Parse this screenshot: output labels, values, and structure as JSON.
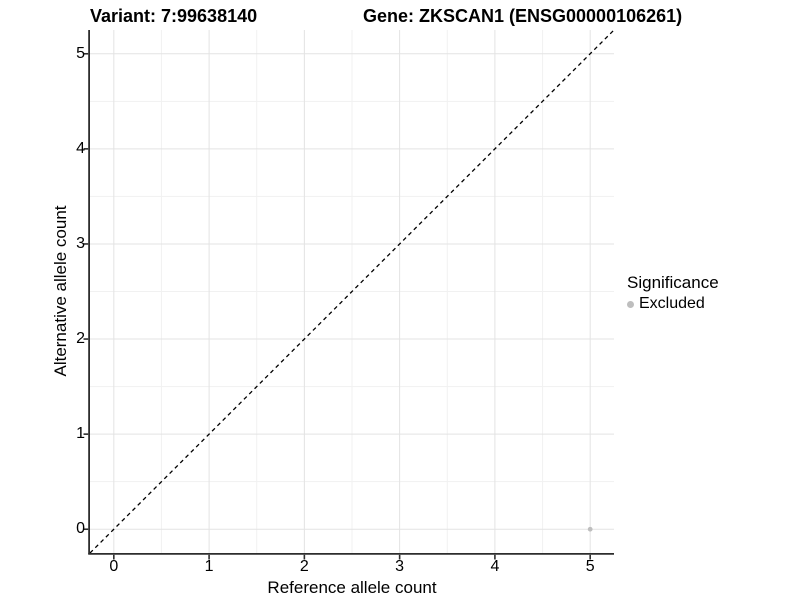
{
  "titles": {
    "variant": "Variant: 7:99638140",
    "gene": "Gene: ZKSCAN1 (ENSG00000106261)"
  },
  "chart_data": {
    "type": "scatter",
    "xlabel": "Reference allele count",
    "ylabel": "Alternative allele count",
    "xlim": [
      -0.25,
      5.25
    ],
    "ylim": [
      -0.25,
      5.25
    ],
    "x_ticks": [
      0,
      1,
      2,
      3,
      4,
      5
    ],
    "y_ticks": [
      0,
      1,
      2,
      3,
      4,
      5
    ],
    "x_minor_ticks": [
      0.5,
      1.5,
      2.5,
      3.5,
      4.5
    ],
    "y_minor_ticks": [
      0.5,
      1.5,
      2.5,
      3.5,
      4.5
    ],
    "grid": true,
    "points": [
      {
        "x": 5,
        "y": 0,
        "series": "Excluded"
      }
    ],
    "reference_line": {
      "kind": "identity",
      "style": "dashed",
      "x1": -0.25,
      "y1": -0.25,
      "x2": 5.25,
      "y2": 5.25
    },
    "legend": {
      "title": "Significance",
      "position": "right",
      "items": [
        {
          "label": "Excluded",
          "color": "#bebebe"
        }
      ]
    }
  },
  "colors": {
    "background": "#ffffff",
    "grid_major": "#e3e3e3",
    "grid_minor": "#f1f1f1",
    "axis_line": "#2d2d2d",
    "tick_mark": "#2d2d2d",
    "dashed_line": "#000000",
    "point": "#bebebe",
    "text": "#000000"
  }
}
